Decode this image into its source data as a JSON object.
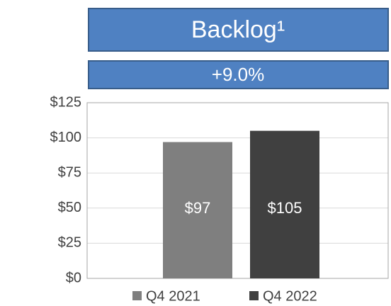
{
  "chart_data": {
    "type": "bar",
    "title": "Backlog¹",
    "subtitle": "+9.0%",
    "categories": [
      null
    ],
    "series": [
      {
        "name": "Q4 2021",
        "color": "#7f7f7f",
        "values": [
          97
        ],
        "value_labels": [
          "$97"
        ]
      },
      {
        "name": "Q4 2022",
        "color": "#404040",
        "values": [
          105
        ],
        "value_labels": [
          "$105"
        ]
      }
    ],
    "ylim": [
      0,
      125
    ],
    "yticks": [
      {
        "value": 0,
        "label": "$0"
      },
      {
        "value": 25,
        "label": "$25"
      },
      {
        "value": 50,
        "label": "$50"
      },
      {
        "value": 75,
        "label": "$75"
      },
      {
        "value": 100,
        "label": "$100"
      },
      {
        "value": 125,
        "label": "$125"
      }
    ],
    "grid": true,
    "legend": "bottom"
  }
}
